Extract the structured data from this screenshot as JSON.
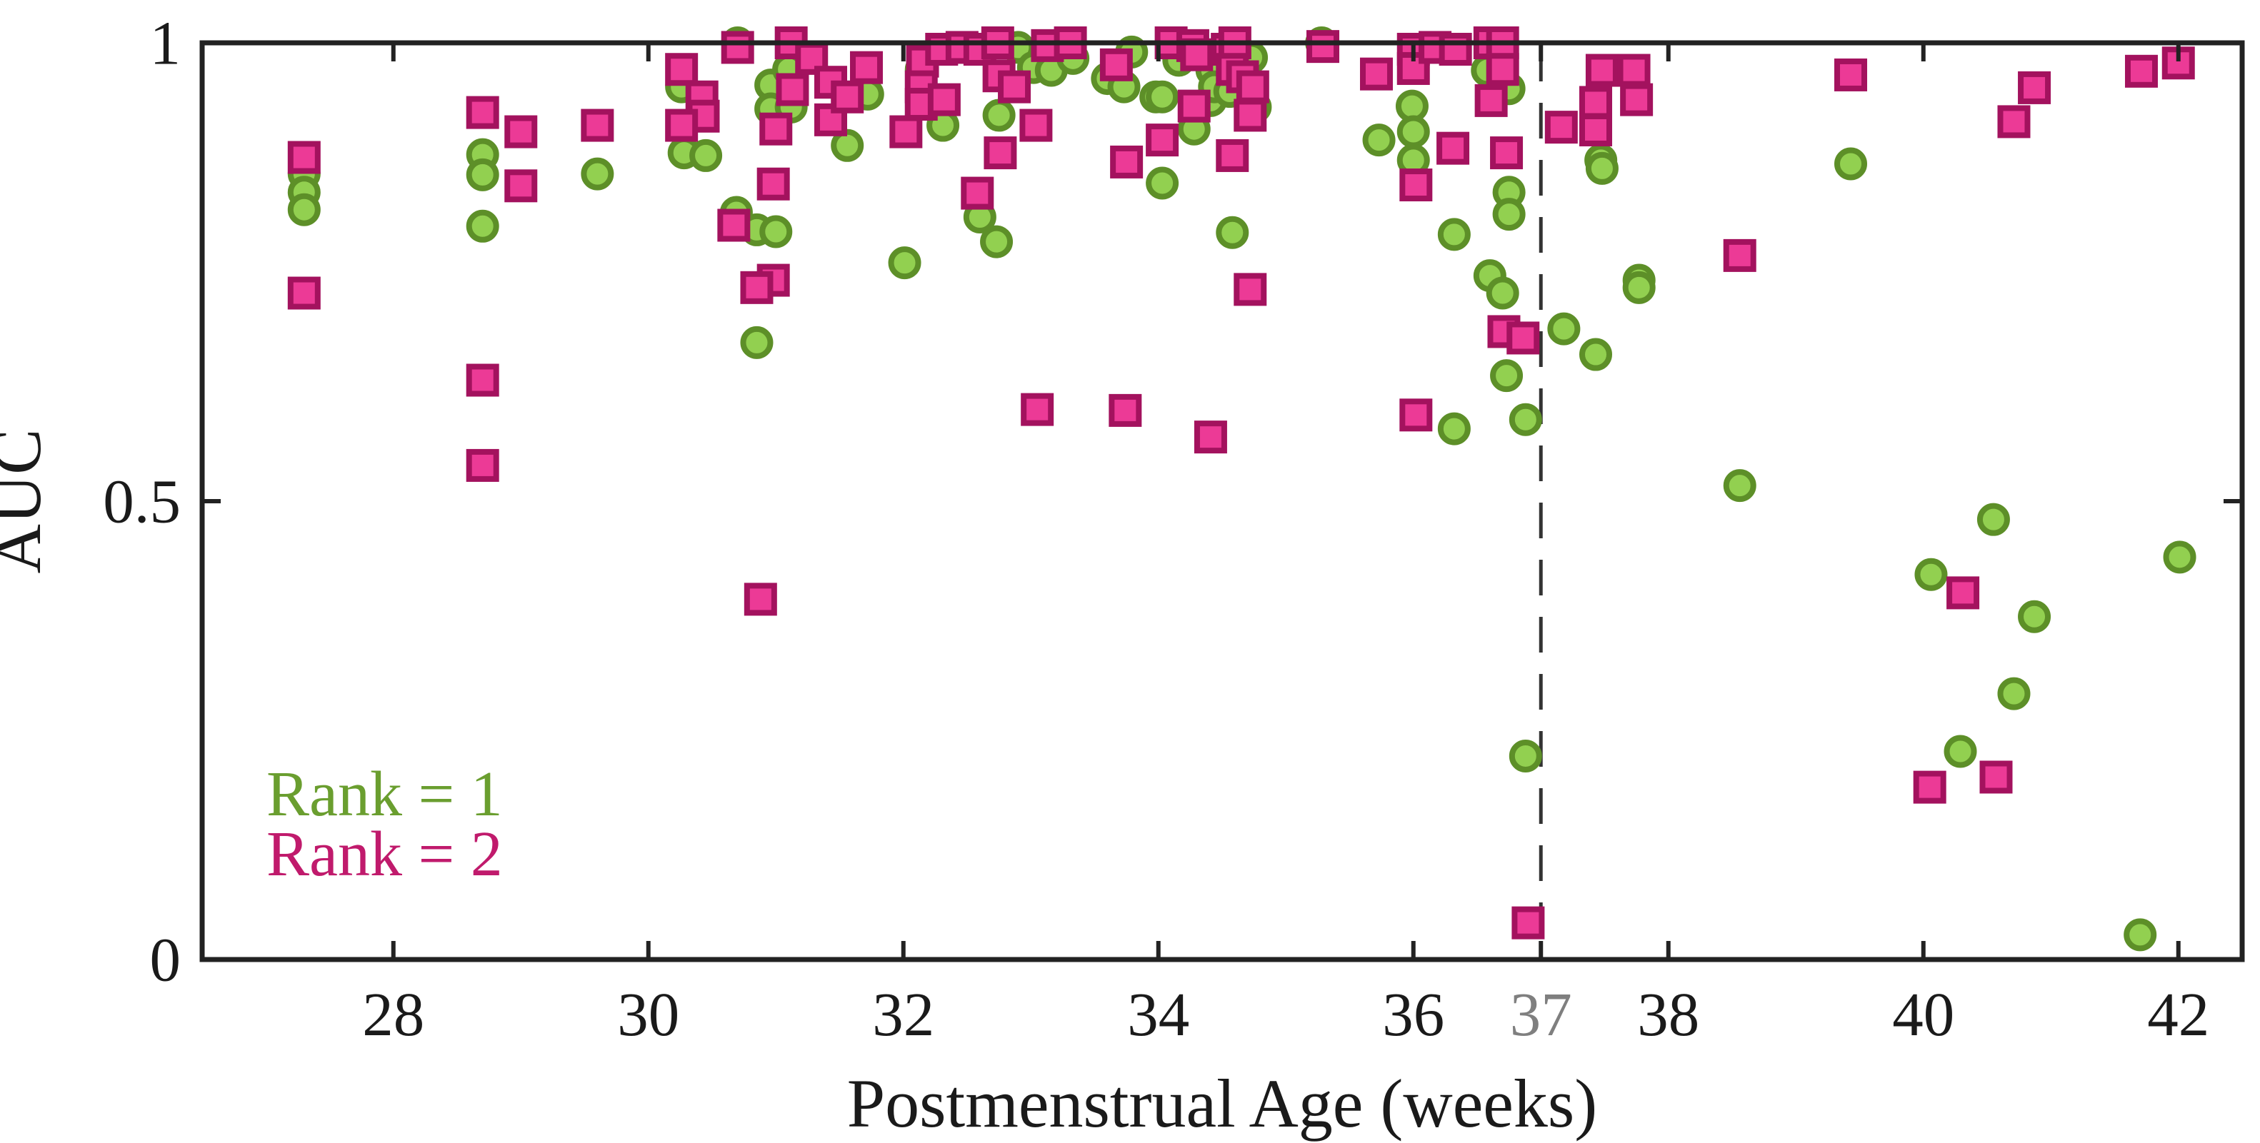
{
  "figure": {
    "x_axis_label": "Postmenstrual Age (weeks)",
    "y_axis_label": "AUC"
  },
  "legend": {
    "items": [
      {
        "label": "Rank = 1",
        "color": "#6a9e2f"
      },
      {
        "label": "Rank = 2",
        "color": "#c01a6c"
      }
    ]
  },
  "colors": {
    "axis": "#222222",
    "tick_label": "#1a1a1a",
    "gray_tick_label": "#7f7f7f",
    "reference_line": "#333333",
    "circle_fill": "#92d050",
    "circle_stroke": "#5d8f28",
    "square_fill": "#ec3a96",
    "square_stroke": "#a3125e"
  },
  "chart_data": {
    "type": "scatter",
    "title": "",
    "xlabel": "Postmenstrual Age (weeks)",
    "ylabel": "AUC",
    "xlim": [
      26.5,
      42.5
    ],
    "ylim": [
      0,
      1
    ],
    "grid": false,
    "legend_position": "lower-left",
    "x_ticks": [
      {
        "value": 28,
        "label": "28",
        "color": "#1a1a1a"
      },
      {
        "value": 30,
        "label": "30",
        "color": "#1a1a1a"
      },
      {
        "value": 32,
        "label": "32",
        "color": "#1a1a1a"
      },
      {
        "value": 34,
        "label": "34",
        "color": "#1a1a1a"
      },
      {
        "value": 36,
        "label": "36",
        "color": "#1a1a1a"
      },
      {
        "value": 37,
        "label": "37",
        "color": "#7f7f7f"
      },
      {
        "value": 38,
        "label": "38",
        "color": "#1a1a1a"
      },
      {
        "value": 40,
        "label": "40",
        "color": "#1a1a1a"
      },
      {
        "value": 42,
        "label": "42",
        "color": "#1a1a1a"
      }
    ],
    "y_ticks": [
      {
        "value": 0,
        "label": "0"
      },
      {
        "value": 0.5,
        "label": "0.5"
      },
      {
        "value": 1,
        "label": "1"
      }
    ],
    "reference_line": {
      "x": 37,
      "style": "dashed"
    },
    "series": [
      {
        "name": "Rank = 1",
        "marker": "circle",
        "points": [
          [
            27.3,
            0.857
          ],
          [
            27.3,
            0.837
          ],
          [
            27.3,
            0.818
          ],
          [
            28.7,
            0.878
          ],
          [
            28.7,
            0.856
          ],
          [
            28.7,
            0.8
          ],
          [
            29.6,
            0.857
          ],
          [
            30.26,
            0.952
          ],
          [
            30.28,
            0.88
          ],
          [
            30.45,
            0.877
          ],
          [
            30.7,
            1.0
          ],
          [
            30.69,
            0.815
          ],
          [
            30.96,
            0.954
          ],
          [
            30.96,
            0.928
          ],
          [
            30.85,
            0.796
          ],
          [
            31.0,
            0.794
          ],
          [
            30.85,
            0.673
          ],
          [
            31.1,
            0.971
          ],
          [
            31.12,
            0.93
          ],
          [
            31.56,
            0.888
          ],
          [
            31.72,
            0.944
          ],
          [
            32.01,
            0.76
          ],
          [
            32.14,
            0.971
          ],
          [
            32.31,
            0.91
          ],
          [
            32.6,
            0.81
          ],
          [
            32.9,
            0.995
          ],
          [
            32.75,
            0.921
          ],
          [
            32.73,
            0.783
          ],
          [
            33.02,
            0.973
          ],
          [
            33.16,
            0.97
          ],
          [
            33.33,
            0.983
          ],
          [
            33.6,
            0.961
          ],
          [
            33.73,
            0.952
          ],
          [
            33.79,
            0.99
          ],
          [
            33.98,
            0.941
          ],
          [
            34.03,
            0.941
          ],
          [
            34.03,
            0.847
          ],
          [
            34.16,
            0.981
          ],
          [
            34.28,
            0.906
          ],
          [
            34.41,
            0.937
          ],
          [
            34.42,
            0.97
          ],
          [
            34.44,
            0.952
          ],
          [
            34.56,
            0.947
          ],
          [
            34.58,
            0.793
          ],
          [
            34.73,
            0.984
          ],
          [
            34.76,
            0.93
          ],
          [
            35.28,
            1.0
          ],
          [
            35.73,
            0.894
          ],
          [
            35.99,
            0.931
          ],
          [
            36.0,
            0.903
          ],
          [
            36.0,
            0.872
          ],
          [
            36.32,
            0.791
          ],
          [
            36.32,
            0.579
          ],
          [
            36.58,
            0.97
          ],
          [
            36.75,
            0.95
          ],
          [
            36.75,
            0.837
          ],
          [
            36.75,
            0.813
          ],
          [
            36.6,
            0.746
          ],
          [
            36.7,
            0.727
          ],
          [
            36.73,
            0.637
          ],
          [
            36.88,
            0.589
          ],
          [
            36.88,
            0.222
          ],
          [
            37.47,
            0.872
          ],
          [
            37.48,
            0.863
          ],
          [
            37.77,
            0.741
          ],
          [
            37.77,
            0.733
          ],
          [
            37.18,
            0.688
          ],
          [
            37.43,
            0.66
          ],
          [
            38.56,
            0.517
          ],
          [
            39.43,
            0.868
          ],
          [
            40.06,
            0.42
          ],
          [
            40.29,
            0.227
          ],
          [
            40.55,
            0.48
          ],
          [
            40.71,
            0.29
          ],
          [
            40.87,
            0.374
          ],
          [
            41.7,
            0.027
          ],
          [
            42.01,
            0.439
          ]
        ]
      },
      {
        "name": "Rank = 2",
        "marker": "square",
        "points": [
          [
            27.3,
            0.875
          ],
          [
            27.3,
            0.727
          ],
          [
            28.7,
            0.924
          ],
          [
            28.7,
            0.632
          ],
          [
            28.7,
            0.539
          ],
          [
            29.0,
            0.903
          ],
          [
            29.0,
            0.844
          ],
          [
            29.6,
            0.91
          ],
          [
            30.26,
            0.971
          ],
          [
            30.42,
            0.941
          ],
          [
            30.43,
            0.92
          ],
          [
            30.26,
            0.91
          ],
          [
            30.7,
            0.995
          ],
          [
            30.67,
            0.801
          ],
          [
            30.88,
            0.393
          ],
          [
            31.0,
            0.906
          ],
          [
            30.98,
            0.846
          ],
          [
            30.98,
            0.741
          ],
          [
            30.85,
            0.733
          ],
          [
            31.12,
            1.0
          ],
          [
            31.13,
            0.949
          ],
          [
            31.28,
            0.983
          ],
          [
            31.43,
            0.957
          ],
          [
            31.43,
            0.916
          ],
          [
            31.56,
            0.941
          ],
          [
            31.71,
            0.973
          ],
          [
            32.02,
            0.903
          ],
          [
            32.15,
            0.98
          ],
          [
            32.3,
            0.993
          ],
          [
            32.46,
            0.995
          ],
          [
            32.6,
            0.993
          ],
          [
            32.14,
            0.952
          ],
          [
            32.14,
            0.933
          ],
          [
            32.32,
            0.938
          ],
          [
            32.58,
            0.836
          ],
          [
            32.74,
            1.0
          ],
          [
            32.75,
            0.964
          ],
          [
            32.87,
            0.952
          ],
          [
            32.76,
            0.88
          ],
          [
            33.04,
            0.91
          ],
          [
            33.05,
            0.6
          ],
          [
            33.13,
            0.997
          ],
          [
            33.31,
            1.0
          ],
          [
            33.67,
            0.976
          ],
          [
            33.75,
            0.87
          ],
          [
            33.74,
            0.599
          ],
          [
            34.1,
            1.0
          ],
          [
            34.27,
            0.997
          ],
          [
            34.3,
            0.987
          ],
          [
            34.54,
            0.993
          ],
          [
            34.6,
            1.0
          ],
          [
            34.58,
            0.971
          ],
          [
            34.66,
            0.963
          ],
          [
            34.74,
            0.952
          ],
          [
            34.28,
            0.931
          ],
          [
            34.72,
            0.921
          ],
          [
            34.03,
            0.894
          ],
          [
            34.58,
            0.877
          ],
          [
            34.72,
            0.731
          ],
          [
            34.41,
            0.57
          ],
          [
            35.29,
            0.996
          ],
          [
            35.71,
            0.966
          ],
          [
            36.0,
            0.993
          ],
          [
            36.0,
            0.972
          ],
          [
            36.02,
            0.845
          ],
          [
            36.17,
            0.995
          ],
          [
            36.33,
            0.993
          ],
          [
            36.31,
            0.885
          ],
          [
            36.02,
            0.594
          ],
          [
            36.6,
            1.0
          ],
          [
            36.7,
            1.0
          ],
          [
            36.7,
            0.971
          ],
          [
            36.61,
            0.937
          ],
          [
            36.73,
            0.88
          ],
          [
            36.71,
            0.685
          ],
          [
            36.86,
            0.678
          ],
          [
            36.9,
            0.04
          ],
          [
            37.16,
            0.908
          ],
          [
            37.43,
            0.935
          ],
          [
            37.43,
            0.905
          ],
          [
            37.48,
            0.97
          ],
          [
            37.73,
            0.97
          ],
          [
            37.75,
            0.938
          ],
          [
            38.56,
            0.768
          ],
          [
            39.43,
            0.965
          ],
          [
            40.31,
            0.4
          ],
          [
            40.05,
            0.188
          ],
          [
            40.57,
            0.199
          ],
          [
            40.71,
            0.914
          ],
          [
            40.87,
            0.951
          ],
          [
            41.71,
            0.969
          ],
          [
            42.0,
            0.978
          ]
        ]
      }
    ]
  }
}
